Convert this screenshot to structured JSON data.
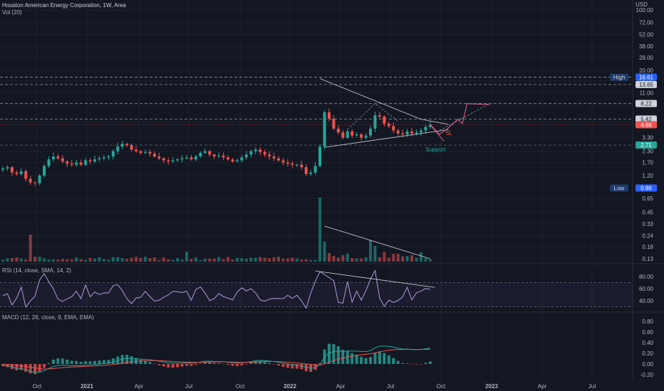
{
  "header": {
    "title": "Houston American Energy Corporation, 1W, Area",
    "volume_label": "Vol (20)",
    "currency": "USD"
  },
  "panes": {
    "rsi_label": "RSI (14, close, SMA, 14, 2)",
    "macd_label": "MACD (12, 26, close, 9, EMA, EMA)"
  },
  "annotations": {
    "support": "Support",
    "stop_loss": "SL",
    "high_label": "High",
    "low_label": "Low"
  },
  "colors": {
    "background": "#131722",
    "up": "#26a69a",
    "down": "#ef5350",
    "grid": "#1e222d",
    "rsi": "#b39ddb",
    "macd": "#26a69a",
    "signal": "#ef5350",
    "projection": "#f06292",
    "trendline": "#d1d4dc",
    "support_text": "#26a69a"
  },
  "chart_data": {
    "type": "candlestick",
    "price_axis": {
      "scale": "log",
      "ticks": [
        "100.00",
        "72.00",
        "52.00",
        "38.00",
        "28.00",
        "20.00",
        "15.00",
        "11.00",
        "8.00",
        "5.00",
        "3.30",
        "2.30",
        "1.70",
        "1.20",
        "0.65",
        "0.45",
        "0.33",
        "0.24",
        "0.18",
        "0.13"
      ],
      "price_labels": [
        {
          "text": "16.61",
          "kind": "high"
        },
        {
          "text": "13.65",
          "kind": "level"
        },
        {
          "text": "8.22",
          "kind": "level"
        },
        {
          "text": "5.42",
          "kind": "level"
        },
        {
          "text": "4.66",
          "kind": "last"
        },
        {
          "text": "2.71",
          "kind": "support"
        },
        {
          "text": "0.86",
          "kind": "low"
        }
      ]
    },
    "x_axis": {
      "ticks": [
        "Oct",
        "2021",
        "Apr",
        "Jul",
        "Oct",
        "2022",
        "Apr",
        "Jul",
        "Oct",
        "2023",
        "Apr",
        "Jul"
      ]
    },
    "rsi_axis": {
      "ticks": [
        "80.00",
        "60.00",
        "40.00"
      ],
      "bands": [
        70,
        30
      ]
    },
    "macd_axis": {
      "ticks": [
        "0.80",
        "0.60",
        "0.40",
        "0.20",
        "0.00",
        "-0.20"
      ]
    },
    "weekly_close_approx": [
      1.45,
      1.5,
      1.3,
      1.25,
      1.35,
      1.1,
      1.0,
      0.98,
      1.2,
      1.55,
      1.85,
      2.0,
      1.9,
      1.75,
      1.65,
      1.6,
      1.7,
      1.6,
      1.8,
      1.75,
      1.85,
      1.9,
      1.95,
      2.0,
      2.3,
      2.6,
      2.8,
      2.7,
      2.4,
      2.3,
      2.2,
      2.25,
      2.15,
      2.0,
      1.9,
      1.8,
      1.75,
      1.8,
      1.85,
      1.9,
      1.95,
      1.85,
      2.0,
      2.2,
      2.3,
      2.1,
      2.0,
      2.05,
      1.95,
      1.85,
      1.75,
      1.8,
      1.95,
      2.1,
      2.3,
      2.4,
      2.25,
      2.1,
      2.0,
      1.9,
      1.8,
      1.7,
      1.65,
      1.6,
      1.6,
      1.5,
      1.25,
      1.3,
      1.55,
      2.6,
      6.5,
      5.5,
      4.2,
      3.8,
      3.3,
      3.9,
      3.5,
      3.6,
      3.3,
      3.5,
      4.2,
      6.0,
      5.8,
      4.8,
      4.5,
      4.0,
      3.7,
      3.6,
      3.9,
      3.7,
      3.8,
      4.0,
      4.4,
      4.66
    ]
  }
}
